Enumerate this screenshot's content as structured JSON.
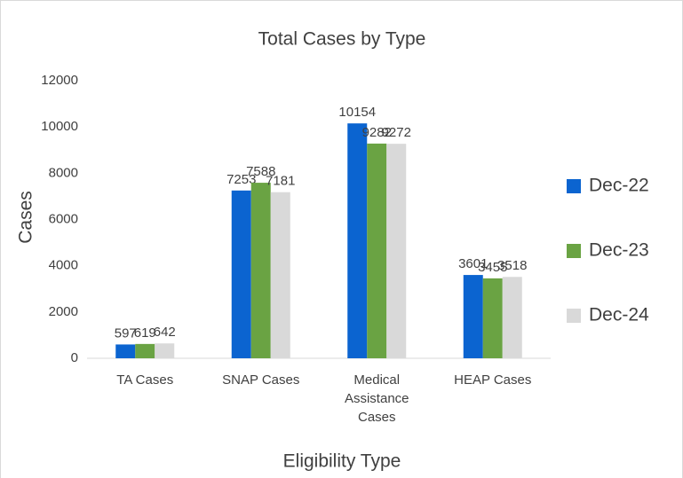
{
  "chart_data": {
    "type": "bar",
    "title": "Total Cases by Type",
    "x_label": "Eligibility Type",
    "y_label": "Cases",
    "categories": [
      "TA Cases",
      "SNAP Cases",
      "Medical Assistance Cases",
      "HEAP Cases"
    ],
    "series": [
      {
        "name": "Dec-22",
        "color": "#0b64d0",
        "values": [
          597,
          7253,
          10154,
          3601
        ]
      },
      {
        "name": "Dec-23",
        "color": "#6aa343",
        "values": [
          619,
          7588,
          9282,
          3455
        ]
      },
      {
        "name": "Dec-24",
        "color": "#d9d9d9",
        "values": [
          642,
          7181,
          9272,
          3518
        ]
      }
    ],
    "ylim": [
      0,
      12000
    ],
    "yticks": [
      0,
      2000,
      4000,
      6000,
      8000,
      10000,
      12000
    ],
    "grid": false,
    "legend": "right"
  }
}
